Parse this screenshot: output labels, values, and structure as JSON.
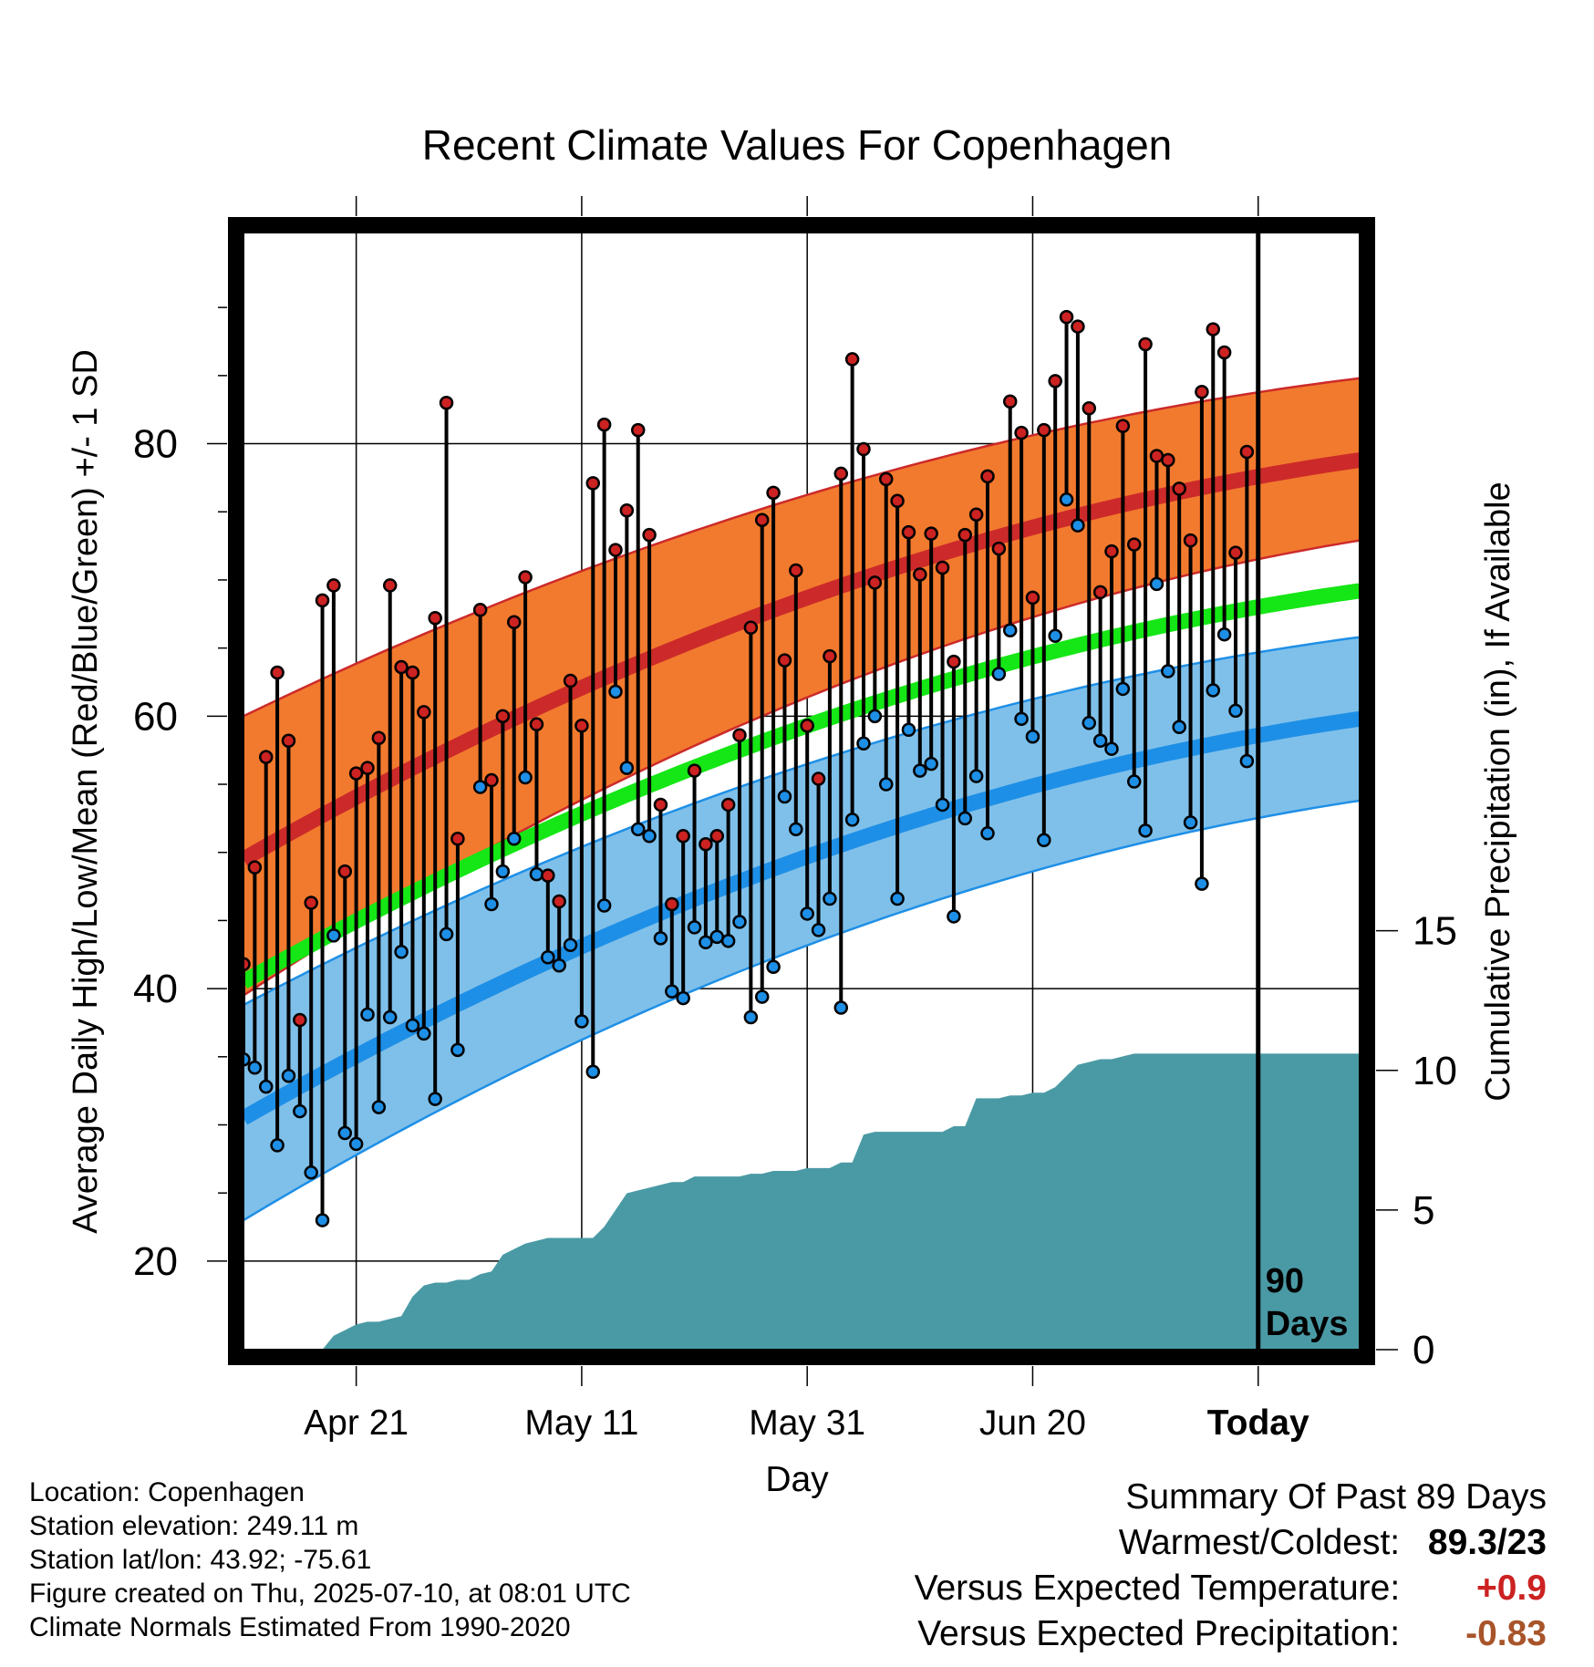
{
  "chart_data": {
    "type": "line",
    "title": "Recent Climate Values For Copenhagen",
    "xlabel": "Day",
    "ylabel": "Average Daily High/Low/Mean (Red/Blue/Green) +/- 1 SD",
    "y2label": "Cumulative Precipitation (in), If Available",
    "x_ticks": [
      "Apr 21",
      "May 11",
      "May 31",
      "Jun 20",
      "Today"
    ],
    "x_tick_days": [
      10,
      30,
      50,
      70,
      90
    ],
    "ylim": [
      13.5,
      95.5
    ],
    "yticks": [
      20,
      40,
      60,
      80
    ],
    "y2lim": [
      0,
      40
    ],
    "y2ticks": [
      0,
      5,
      10,
      15
    ],
    "today_label": [
      "90",
      "Days"
    ],
    "normals": {
      "high_mean": {
        "day0": 49.5,
        "day99": 78.8
      },
      "high_upper": {
        "day0": 60.0,
        "day99": 84.8
      },
      "high_lower": {
        "day0": 39.5,
        "day99": 72.9
      },
      "low_mean": {
        "day0": 30.5,
        "day99": 59.8
      },
      "low_upper": {
        "day0": 38.8,
        "day99": 65.8
      },
      "low_lower": {
        "day0": 23.0,
        "day99": 53.8
      },
      "mean": {
        "day0": 40.5,
        "day99": 69.2
      }
    },
    "series": [
      {
        "name": "High",
        "color": "#cc2222",
        "values": [
          41.8,
          48.9,
          57.0,
          63.2,
          58.2,
          37.7,
          46.3,
          68.5,
          69.6,
          48.6,
          55.8,
          56.2,
          58.4,
          69.6,
          63.6,
          63.2,
          60.3,
          67.2,
          83.0,
          51.0,
          0,
          67.8,
          55.3,
          60.0,
          66.9,
          70.2,
          59.4,
          48.3,
          46.4,
          62.6,
          59.3,
          77.1,
          81.4,
          72.2,
          75.1,
          81.0,
          73.3,
          53.5,
          46.2,
          51.2,
          56.0,
          50.6,
          51.2,
          53.5,
          58.6,
          66.5,
          74.4,
          76.4,
          64.1,
          70.7,
          59.3,
          55.4,
          64.4,
          77.8,
          86.2,
          79.6,
          69.8,
          77.4,
          75.8,
          73.5,
          70.4,
          73.4,
          70.9,
          64.0,
          73.3,
          74.8,
          77.6,
          72.3,
          83.1,
          80.8,
          68.7,
          81.0,
          84.6,
          89.3,
          88.6,
          82.6,
          69.1,
          72.1,
          81.3,
          72.6,
          87.3,
          79.1,
          78.8,
          76.7,
          72.9,
          83.8,
          88.4,
          86.7,
          72.0,
          79.4
        ]
      },
      {
        "name": "Low",
        "color": "#1e8fe6",
        "values": [
          34.8,
          34.2,
          32.8,
          28.5,
          33.6,
          31.0,
          26.5,
          23.0,
          43.9,
          29.4,
          28.6,
          38.1,
          31.3,
          37.9,
          42.7,
          37.3,
          36.7,
          31.9,
          44.0,
          35.5,
          0,
          54.8,
          46.2,
          48.6,
          51.0,
          55.5,
          48.4,
          42.3,
          41.7,
          43.2,
          37.6,
          33.9,
          46.1,
          61.8,
          56.2,
          51.7,
          51.2,
          43.7,
          39.8,
          39.3,
          44.5,
          43.4,
          43.8,
          43.5,
          44.9,
          37.9,
          39.4,
          41.6,
          54.1,
          51.7,
          45.5,
          44.3,
          46.6,
          38.6,
          52.4,
          58.0,
          60.0,
          55.0,
          46.6,
          59.0,
          56.0,
          56.5,
          53.5,
          45.3,
          52.5,
          55.6,
          51.4,
          63.1,
          66.3,
          59.8,
          58.5,
          50.9,
          65.9,
          75.9,
          74.0,
          59.5,
          58.2,
          57.6,
          62.0,
          55.2,
          51.6,
          69.7,
          63.3,
          59.2,
          52.2,
          47.7,
          61.9,
          66.0,
          60.4,
          56.7
        ]
      }
    ],
    "precip_cumulative": {
      "days": [
        0,
        7,
        8,
        9,
        10,
        11,
        12,
        13,
        14,
        15,
        16,
        17,
        18,
        19,
        20,
        21,
        22,
        23,
        24,
        25,
        26,
        27,
        28,
        29,
        30,
        31,
        32,
        33,
        34,
        35,
        36,
        37,
        38,
        39,
        40,
        41,
        42,
        43,
        44,
        45,
        46,
        47,
        48,
        49,
        50,
        51,
        52,
        53,
        54,
        55,
        56,
        57,
        58,
        59,
        60,
        61,
        62,
        63,
        64,
        65,
        66,
        67,
        68,
        69,
        70,
        71,
        72,
        73,
        74,
        75,
        76,
        77,
        78,
        79,
        80,
        81,
        82,
        83,
        84,
        85,
        86,
        87,
        88,
        89,
        90,
        99
      ],
      "values": [
        0,
        0,
        0.5,
        0.7,
        0.9,
        1.0,
        1.0,
        1.1,
        1.2,
        1.9,
        2.3,
        2.4,
        2.4,
        2.5,
        2.5,
        2.7,
        2.8,
        3.4,
        3.6,
        3.8,
        3.9,
        4.0,
        4.0,
        4.0,
        4.0,
        4.0,
        4.4,
        5.0,
        5.6,
        5.7,
        5.8,
        5.9,
        6.0,
        6.0,
        6.2,
        6.2,
        6.2,
        6.2,
        6.2,
        6.3,
        6.3,
        6.4,
        6.4,
        6.4,
        6.5,
        6.5,
        6.5,
        6.7,
        6.7,
        7.7,
        7.8,
        7.8,
        7.8,
        7.8,
        7.8,
        7.8,
        7.8,
        8.0,
        8.0,
        9.0,
        9.0,
        9.0,
        9.1,
        9.1,
        9.2,
        9.2,
        9.4,
        9.8,
        10.2,
        10.3,
        10.4,
        10.4,
        10.5,
        10.6,
        10.6,
        10.6,
        10.6,
        10.6,
        10.6,
        10.6,
        10.6,
        10.6,
        10.6,
        10.6,
        10.6,
        10.6
      ]
    },
    "colors": {
      "high_band": "#f27a2e",
      "high_line": "#cc2a2a",
      "low_band": "#7fc0ea",
      "low_line": "#1e8fe6",
      "mean_line": "#15e615",
      "precip": "#4a9aa5"
    }
  },
  "info": {
    "location": "Location: Copenhagen",
    "elevation": "Station elevation: 249.11 m",
    "latlon": "Station lat/lon: 43.92; -75.61",
    "created": "Figure created on Thu, 2025-07-10, at 08:01 UTC",
    "normals": "Climate Normals Estimated From 1990-2020"
  },
  "summary": {
    "title": "Summary Of Past 89 Days",
    "warm_cold_label": "Warmest/Coldest:",
    "warm_cold_value": "89.3/23",
    "temp_label": "Versus Expected Temperature:",
    "temp_value": "+0.9",
    "temp_color": "#cc2222",
    "precip_label": "Versus Expected Precipitation:",
    "precip_value": "-0.83",
    "precip_color": "#a8542a"
  }
}
